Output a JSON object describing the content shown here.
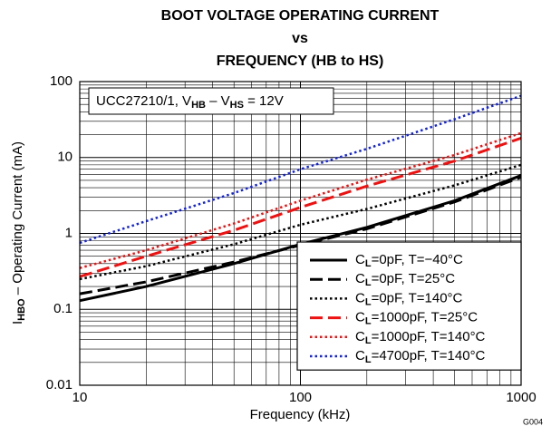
{
  "chart_data": {
    "type": "line",
    "title": [
      "BOOT VOLTAGE OPERATING CURRENT",
      "vs",
      "FREQUENCY (HB to HS)"
    ],
    "xlabel": "Frequency (kHz)",
    "ylabel": [
      "I",
      "HBO",
      " – Operating Current (mA)"
    ],
    "annotation": [
      "UCC27210/1, V",
      "HB",
      " – V",
      "HS",
      " = 12V"
    ],
    "figure_id": "G004",
    "x": [
      10,
      20,
      50,
      100,
      200,
      500,
      1000
    ],
    "series": [
      {
        "name": "CL=0pF, T=−40°C",
        "color": "#000000",
        "dash": "solid",
        "values": [
          0.13,
          0.2,
          0.4,
          0.72,
          1.2,
          2.7,
          5.8
        ]
      },
      {
        "name": "CL=0pF, T=25°C",
        "color": "#000000",
        "dash": "dashed",
        "values": [
          0.16,
          0.23,
          0.42,
          0.7,
          1.15,
          2.6,
          5.5
        ]
      },
      {
        "name": "CL=0pF, T=140°C",
        "color": "#000000",
        "dash": "dotted",
        "values": [
          0.25,
          0.37,
          0.72,
          1.3,
          2.1,
          4.3,
          8
        ]
      },
      {
        "name": "CL=1000pF, T=25°C",
        "color": "#ee1111",
        "dash": "dashed",
        "values": [
          0.27,
          0.5,
          1.1,
          2.2,
          4.2,
          9,
          18
        ]
      },
      {
        "name": "CL=1000pF, T=140°C",
        "color": "#ee1111",
        "dash": "dotted",
        "values": [
          0.35,
          0.6,
          1.35,
          2.7,
          5.1,
          10.8,
          21
        ]
      },
      {
        "name": "CL=4700pF, T=140°C",
        "color": "#1122dd",
        "dash": "dotted",
        "values": [
          0.75,
          1.45,
          3.4,
          7,
          13,
          32,
          65
        ]
      }
    ],
    "xlim": [
      10,
      1000
    ],
    "xticks": [
      10,
      100,
      1000
    ],
    "ylim": [
      0.01,
      100
    ],
    "yticks": [
      0.01,
      0.1,
      1,
      10,
      100
    ],
    "log_x": true,
    "log_y": true,
    "grid": true,
    "legend": "lower right"
  }
}
